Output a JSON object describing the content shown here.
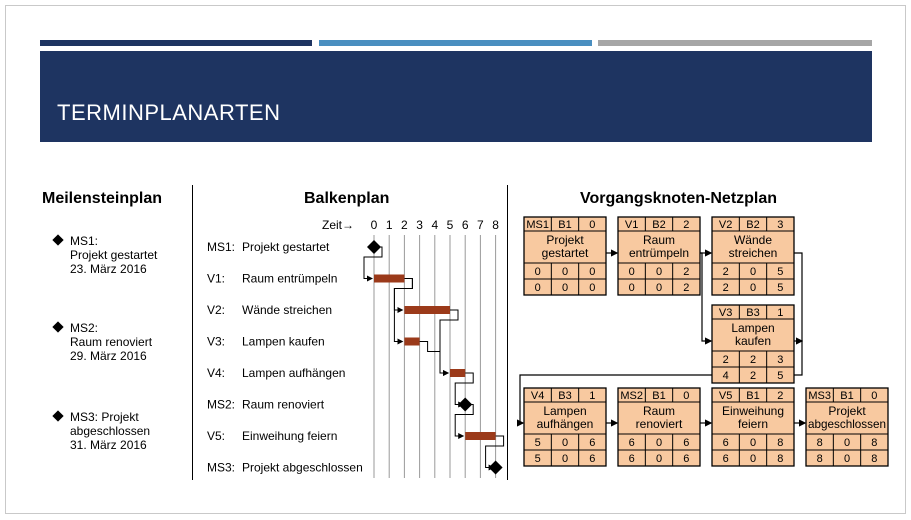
{
  "slide": {
    "title": "TERMINPLANARTEN",
    "accent_colors": [
      "#1e3461",
      "#4a8fc0",
      "#a6a6a6"
    ]
  },
  "milestone_plan": {
    "title": "Meilensteinplan",
    "items": [
      {
        "lines": [
          "MS1:",
          "Projekt gestartet",
          "23. März 2016"
        ]
      },
      {
        "lines": [
          "MS2:",
          "Raum renoviert",
          "29. März 2016"
        ]
      },
      {
        "lines": [
          "MS3: Projekt",
          "abgeschlossen",
          "31. März 2016"
        ]
      }
    ]
  },
  "gantt": {
    "title": "Balkenplan",
    "time_label": "Zeit→",
    "ticks": [
      "0",
      "1",
      "2",
      "3",
      "4",
      "5",
      "6",
      "7",
      "8"
    ],
    "bar_color": "#9b3a1a",
    "rows": [
      {
        "id": "MS1:",
        "label": "Projekt gestartet",
        "type": "milestone",
        "at": 0
      },
      {
        "id": "V1:",
        "label": "Raum entrümpeln",
        "type": "task",
        "start": 0,
        "end": 2
      },
      {
        "id": "V2:",
        "label": "Wände streichen",
        "type": "task",
        "start": 2,
        "end": 5
      },
      {
        "id": "V3:",
        "label": "Lampen kaufen",
        "type": "task",
        "start": 2,
        "end": 3
      },
      {
        "id": "V4:",
        "label": "Lampen aufhängen",
        "type": "task",
        "start": 5,
        "end": 6
      },
      {
        "id": "MS2:",
        "label": "Raum renoviert",
        "type": "milestone",
        "at": 6
      },
      {
        "id": "V5:",
        "label": "Einweihung feiern",
        "type": "task",
        "start": 6,
        "end": 8
      },
      {
        "id": "MS3:",
        "label": "Projekt abgeschlossen",
        "type": "milestone",
        "at": 8
      }
    ]
  },
  "network": {
    "title": "Vorgangsknoten-Netzplan",
    "node_color": "#f8c9a0",
    "nodes": [
      {
        "key": "n1",
        "id": "MS1",
        "res": "B1",
        "dur": "0",
        "name": [
          "Projekt",
          "gestartet"
        ],
        "r1": [
          "0",
          "0",
          "0"
        ],
        "r2": [
          "0",
          "0",
          "0"
        ]
      },
      {
        "key": "n2",
        "id": "V1",
        "res": "B2",
        "dur": "2",
        "name": [
          "Raum",
          "entrümpeln"
        ],
        "r1": [
          "0",
          "0",
          "2"
        ],
        "r2": [
          "0",
          "0",
          "2"
        ]
      },
      {
        "key": "n3",
        "id": "V2",
        "res": "B2",
        "dur": "3",
        "name": [
          "Wände",
          "streichen"
        ],
        "r1": [
          "2",
          "0",
          "5"
        ],
        "r2": [
          "2",
          "0",
          "5"
        ]
      },
      {
        "key": "n4",
        "id": "V3",
        "res": "B3",
        "dur": "1",
        "name": [
          "Lampen",
          "kaufen"
        ],
        "r1": [
          "2",
          "2",
          "3"
        ],
        "r2": [
          "4",
          "2",
          "5"
        ]
      },
      {
        "key": "n5",
        "id": "V4",
        "res": "B3",
        "dur": "1",
        "name": [
          "Lampen",
          "aufhängen"
        ],
        "r1": [
          "5",
          "0",
          "6"
        ],
        "r2": [
          "5",
          "0",
          "6"
        ]
      },
      {
        "key": "n6",
        "id": "MS2",
        "res": "B1",
        "dur": "0",
        "name": [
          "Raum",
          "renoviert"
        ],
        "r1": [
          "6",
          "0",
          "6"
        ],
        "r2": [
          "6",
          "0",
          "6"
        ]
      },
      {
        "key": "n7",
        "id": "V5",
        "res": "B1",
        "dur": "2",
        "name": [
          "Einweihung",
          "feiern"
        ],
        "r1": [
          "6",
          "0",
          "8"
        ],
        "r2": [
          "6",
          "0",
          "8"
        ]
      },
      {
        "key": "n8",
        "id": "MS3",
        "res": "B1",
        "dur": "0",
        "name": [
          "Projekt",
          "abgeschlossen"
        ],
        "r1": [
          "8",
          "0",
          "8"
        ],
        "r2": [
          "8",
          "0",
          "8"
        ]
      }
    ]
  }
}
